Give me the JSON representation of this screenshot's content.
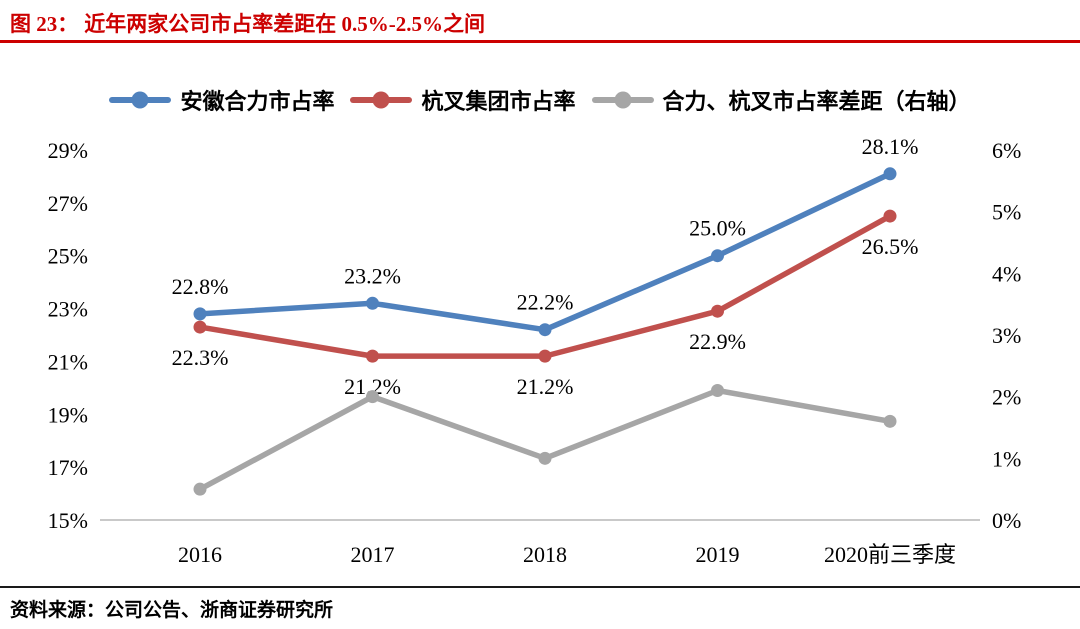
{
  "header": {
    "figure_label": "图 23：",
    "figure_title": "近年两家公司市占率差距在 0.5%-2.5%之间"
  },
  "footer": {
    "source_label": "资料来源：",
    "source_text": "公司公告、浙商证券研究所"
  },
  "colors": {
    "title_red": "#CC0000",
    "header_rule": "#CC0000",
    "footer_rule": "#1A1A1A",
    "axis_line": "#C9C9C9",
    "text": "#000000",
    "series_blue": "#4F81BD",
    "series_red": "#C0504D",
    "series_gray": "#A6A6A6"
  },
  "chart_data": {
    "type": "line",
    "title": "近年两家公司市占率差距在 0.5%-2.5%之间",
    "categories": [
      "2016",
      "2017",
      "2018",
      "2019",
      "2020前三季度"
    ],
    "series": [
      {
        "name": "安徽合力市占率",
        "axis": "left",
        "color": "#4F81BD",
        "marker": "circle",
        "label_position": "above",
        "values": [
          22.8,
          23.2,
          22.2,
          25.0,
          28.1
        ],
        "labels": [
          "22.8%",
          "23.2%",
          "22.2%",
          "25.0%",
          "28.1%"
        ]
      },
      {
        "name": "杭叉集团市占率",
        "axis": "left",
        "color": "#C0504D",
        "marker": "circle",
        "label_position": "below",
        "values": [
          22.3,
          21.2,
          21.2,
          22.9,
          26.5
        ],
        "labels": [
          "22.3%",
          "21.2%",
          "21.2%",
          "22.9%",
          "26.5%"
        ]
      },
      {
        "name": "合力、杭叉市占率差距（右轴）",
        "axis": "right",
        "color": "#A6A6A6",
        "marker": "circle",
        "values": [
          0.5,
          2.0,
          1.0,
          2.1,
          1.6
        ]
      }
    ],
    "left_axis": {
      "min": 15,
      "max": 29,
      "step": 2,
      "ticks": [
        "29%",
        "27%",
        "25%",
        "23%",
        "21%",
        "19%",
        "17%",
        "15%"
      ]
    },
    "right_axis": {
      "min": 0,
      "max": 6,
      "step": 1,
      "ticks": [
        "6%",
        "5%",
        "4%",
        "3%",
        "2%",
        "1%",
        "0%"
      ]
    },
    "legend_position": "top",
    "grid": false
  }
}
